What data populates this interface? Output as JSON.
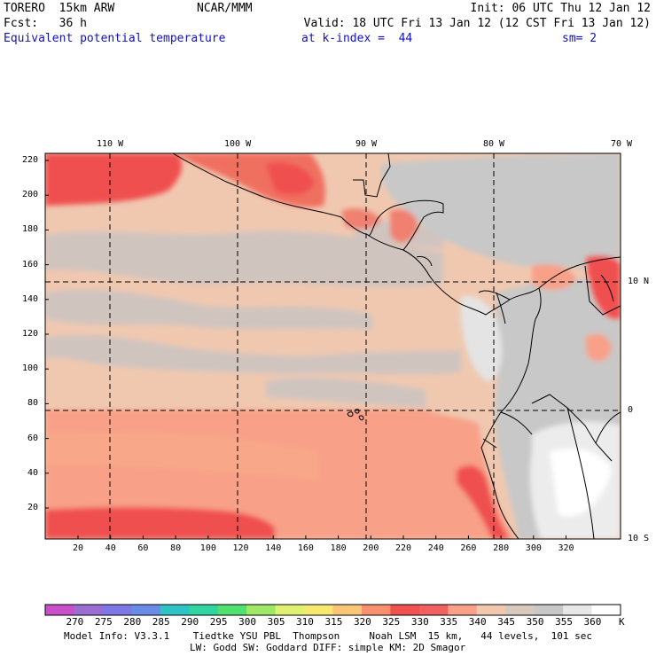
{
  "header": {
    "model": "TORERO  15km ARW",
    "org": "NCAR/MMM",
    "init": "Init: 06 UTC Thu 12 Jan 12",
    "fcst": "Fcst:   36 h",
    "valid": "Valid: 18 UTC Fri 13 Jan 12 (12 CST Fri 13 Jan 12)",
    "field": "Equivalent potential temperature",
    "level": "at k-index =  44",
    "smooth": "sm= 2"
  },
  "axes": {
    "top_labels": [
      "110 W",
      "100 W",
      "90 W",
      "80 W",
      "70 W"
    ],
    "right_labels": [
      "10 N",
      "0",
      "10 S"
    ],
    "left_labels": [
      "220",
      "200",
      "180",
      "160",
      "140",
      "120",
      "100",
      "80",
      "60",
      "40",
      "20"
    ],
    "bottom_labels": [
      "20",
      "40",
      "60",
      "80",
      "100",
      "120",
      "140",
      "160",
      "180",
      "200",
      "220",
      "240",
      "260",
      "280",
      "300",
      "320"
    ]
  },
  "colorbar": {
    "labels": [
      "270",
      "275",
      "280",
      "285",
      "290",
      "295",
      "300",
      "305",
      "310",
      "315",
      "320",
      "325",
      "330",
      "335",
      "340",
      "345",
      "350",
      "355",
      "360"
    ],
    "unit": "K",
    "colors": [
      "#c850c8",
      "#9a6ed2",
      "#7e78e6",
      "#6a8ce6",
      "#2ec4c4",
      "#30d4a0",
      "#50e070",
      "#a0e868",
      "#e0f070",
      "#f8e870",
      "#f8c878",
      "#f89070",
      "#f05050",
      "#f06060",
      "#f8a088",
      "#f0c8b0",
      "#d8c8c0",
      "#c8c8c8",
      "#e8e8e8",
      "#ffffff"
    ]
  },
  "footer": {
    "line1": "Model Info: V3.3.1    Tiedtke YSU PBL  Thompson     Noah LSM  15 km,   44 levels,  101 sec",
    "line2": "LW: Godd SW: Goddard DIFF: simple KM: 2D Smagor"
  }
}
